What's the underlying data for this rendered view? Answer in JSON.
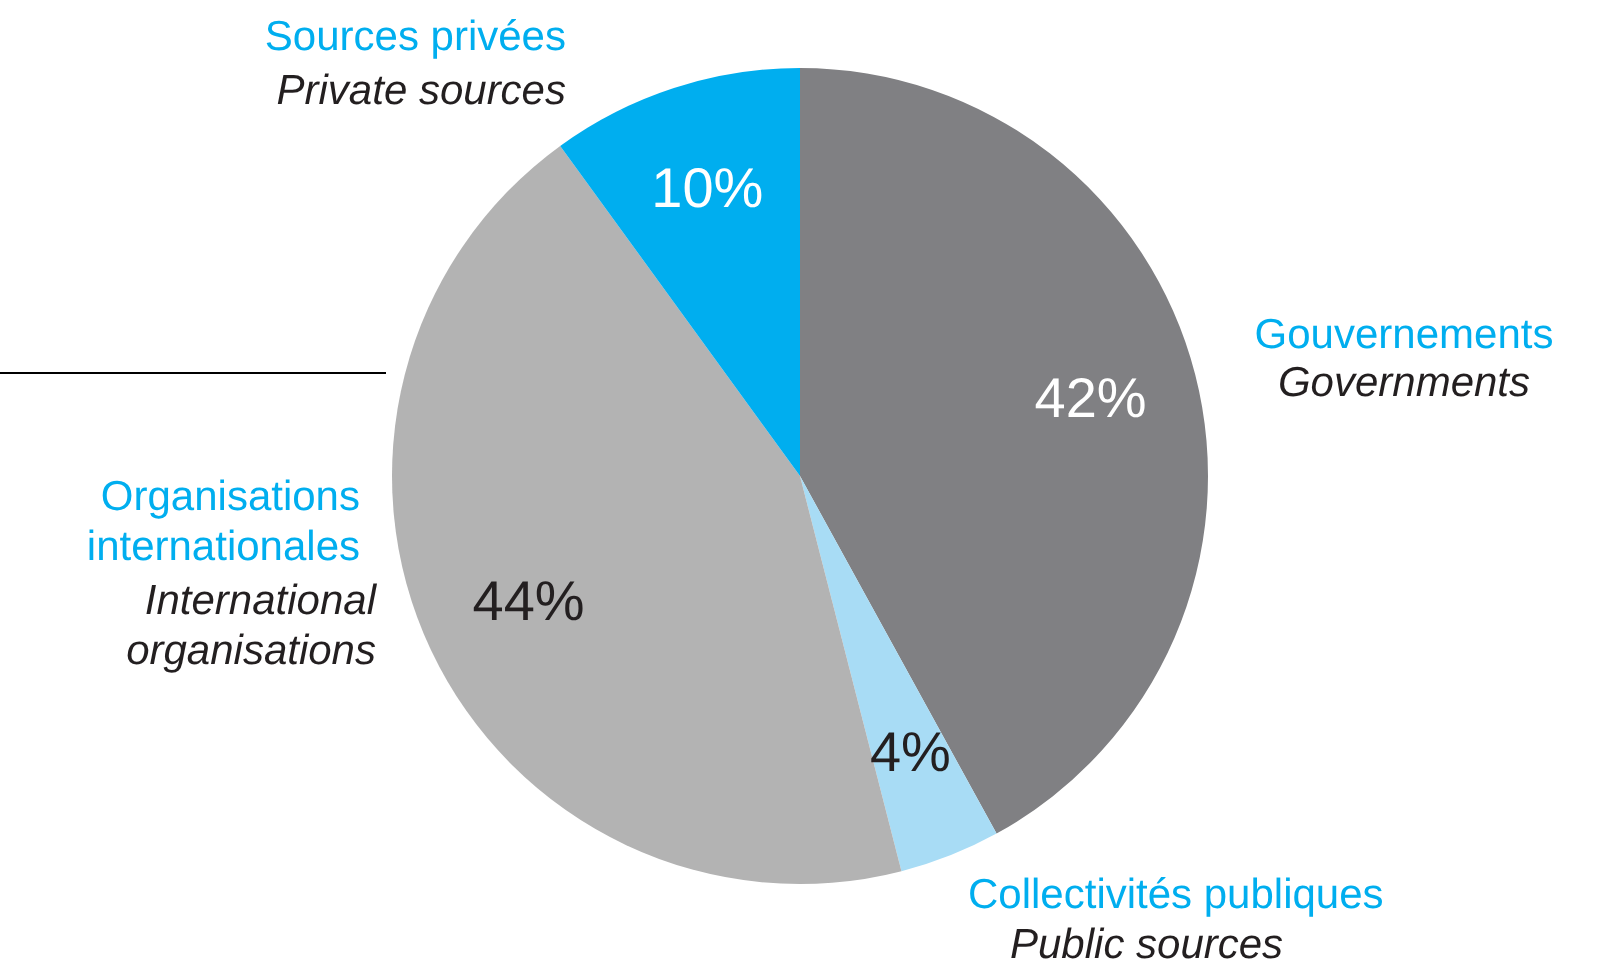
{
  "chart_data": {
    "type": "pie",
    "categories": [
      "Gouvernements",
      "Collectivités publiques",
      "Organisations internationales",
      "Sources privées"
    ],
    "values": [
      42,
      4,
      44,
      10
    ],
    "colors": [
      "#808083",
      "#a8dcf5",
      "#b3b3b3",
      "#00aeef"
    ],
    "value_labels": [
      "42%",
      "4%",
      "44%",
      "10%"
    ],
    "annotations": [
      "Governments",
      "Public sources",
      "International organisations",
      "Private sources"
    ]
  }
}
